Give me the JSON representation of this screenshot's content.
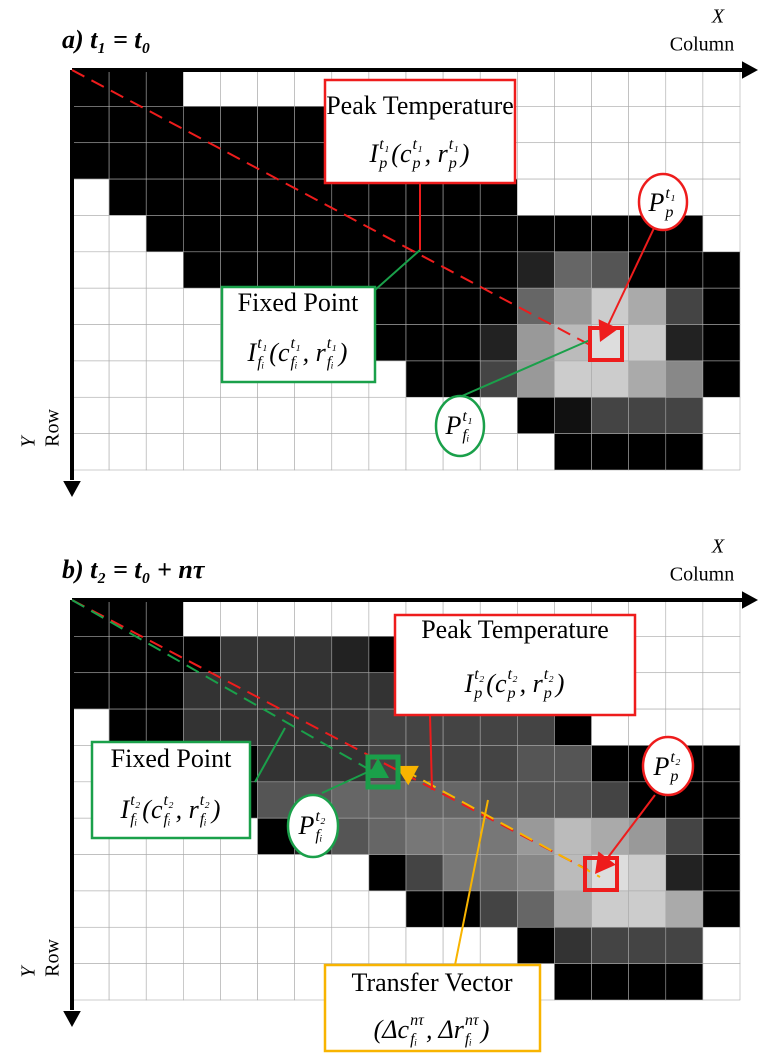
{
  "panels": [
    {
      "title": "a) t₁ = t₀",
      "x_axis": "X",
      "x_label": "Column",
      "y_axis": "Y",
      "y_label": "Row",
      "peak_label": "Peak Temperature",
      "peak_formula": [
        {
          "base": "I",
          "sub": "p",
          "sup": "t₁"
        },
        {
          "base": "(c",
          "sub": "p",
          "sup": "t₁"
        },
        {
          "base": ", r",
          "sub": "p",
          "sup": "t₁"
        },
        {
          "base": ")"
        }
      ],
      "peak_point": [
        {
          "base": "P",
          "sub": "p",
          "sup": "t₁"
        }
      ],
      "fixed_label": "Fixed Point",
      "fixed_formula": [
        {
          "base": "I",
          "sub": "fᵢ",
          "sup": "t₁"
        },
        {
          "base": "(c",
          "sub": "fᵢ",
          "sup": "t₁"
        },
        {
          "base": ", r",
          "sub": "fᵢ",
          "sup": "t₁"
        },
        {
          "base": ")"
        }
      ],
      "fixed_point": [
        {
          "base": "P",
          "sub": "fᵢ",
          "sup": "t₁"
        }
      ]
    },
    {
      "title": "b) t₂ = t₀ + nτ",
      "x_axis": "X",
      "x_label": "Column",
      "y_axis": "Y",
      "y_label": "Row",
      "peak_label": "Peak Temperature",
      "peak_formula": [
        {
          "base": "I",
          "sub": "p",
          "sup": "t₂"
        },
        {
          "base": "(c",
          "sub": "p",
          "sup": "t₂"
        },
        {
          "base": ", r",
          "sub": "p",
          "sup": "t₂"
        },
        {
          "base": ")"
        }
      ],
      "peak_point": [
        {
          "base": "P",
          "sub": "p",
          "sup": "t₂"
        }
      ],
      "fixed_label": "Fixed Point",
      "fixed_formula": [
        {
          "base": "I",
          "sub": "fᵢ",
          "sup": "t₂"
        },
        {
          "base": "(c",
          "sub": "fᵢ",
          "sup": "t₂"
        },
        {
          "base": ", r",
          "sub": "fᵢ",
          "sup": "t₂"
        },
        {
          "base": ")"
        }
      ],
      "fixed_point": [
        {
          "base": "P",
          "sub": "fᵢ",
          "sup": "t₂"
        }
      ],
      "transfer_label": "Transfer Vector",
      "transfer_formula": [
        {
          "base": "(Δc",
          "sub": "fᵢ",
          "sup": "nτ"
        },
        {
          "base": ", Δr",
          "sub": "fᵢ",
          "sup": "nτ"
        },
        {
          "base": ")"
        }
      ]
    }
  ]
}
